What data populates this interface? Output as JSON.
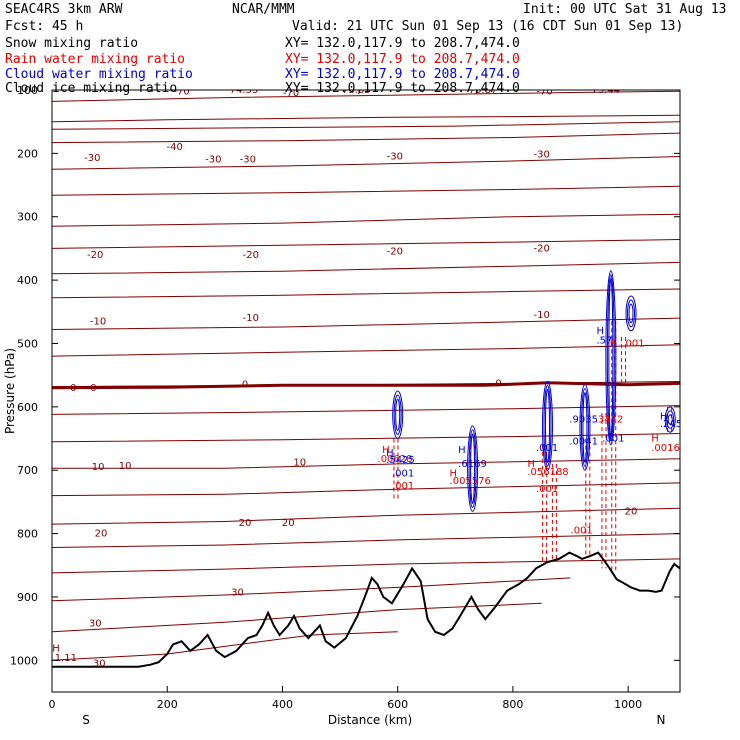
{
  "header": {
    "model": "SEAC4RS  3km ARW",
    "org": "NCAR/MMM",
    "init": "Init: 00 UTC Sat 31 Aug 13",
    "fcst": "Fcst:   45 h",
    "valid": "Valid: 21 UTC Sun 01 Sep 13 (16 CDT Sun 01 Sep 13)",
    "fields": [
      {
        "name": "Snow mixing ratio",
        "xy": "XY= 132.0,117.9 to 208.7,474.0",
        "color": "#000000"
      },
      {
        "name": "Rain water mixing ratio",
        "xy": "XY= 132.0,117.9 to 208.7,474.0",
        "color": "#e00000"
      },
      {
        "name": "Cloud water mixing ratio",
        "xy": "XY= 132.0,117.9 to 208.7,474.0",
        "color": "#0000d0"
      },
      {
        "name": "Cloud ice mixing ratio",
        "xy": "XY= 132.0,117.9 to 208.7,474.0",
        "color": "#000000"
      }
    ]
  },
  "chart_data": {
    "type": "cross-section",
    "xlabel": "Distance (km)",
    "ylabel": "Pressure (hPa)",
    "xlim": [
      0,
      1090
    ],
    "ylim_hpa": [
      1050,
      100
    ],
    "x_ticks": [
      0,
      200,
      400,
      600,
      800,
      1000
    ],
    "y_ticks": [
      100,
      200,
      300,
      400,
      500,
      600,
      700,
      800,
      900,
      1000
    ],
    "x_end_labels": [
      "S",
      "N"
    ],
    "colors": {
      "temperature": "#800000",
      "freezing_level": "#800000",
      "terrain": "#000000",
      "rain": "#e00000",
      "cloud_water": "#0000d0"
    },
    "temperature_contours_C": [
      {
        "value": -70,
        "points": [
          [
            0,
            150
          ],
          [
            200,
            147
          ],
          [
            400,
            145
          ],
          [
            600,
            143
          ],
          [
            800,
            142
          ],
          [
            1090,
            140
          ]
        ]
      },
      {
        "value": -70,
        "points": [
          [
            0,
            118
          ],
          [
            300,
            112
          ],
          [
            600,
            108
          ],
          [
            900,
            104
          ],
          [
            1090,
            102
          ]
        ]
      },
      {
        "value": -60,
        "points": [
          [
            0,
            162
          ],
          [
            300,
            160
          ],
          [
            700,
            157
          ],
          [
            1090,
            150
          ]
        ]
      },
      {
        "value": -50,
        "points": [
          [
            0,
            183
          ],
          [
            400,
            180
          ],
          [
            800,
            175
          ],
          [
            1090,
            168
          ]
        ]
      },
      {
        "value": -40,
        "points": [
          [
            0,
            225
          ],
          [
            400,
            220
          ],
          [
            800,
            212
          ],
          [
            1090,
            205
          ]
        ]
      },
      {
        "value": -30,
        "points": [
          [
            0,
            266
          ],
          [
            400,
            262
          ],
          [
            800,
            257
          ],
          [
            1090,
            252
          ]
        ]
      },
      {
        "value": -30,
        "points": [
          [
            0,
            315
          ],
          [
            400,
            310
          ],
          [
            800,
            300
          ],
          [
            1090,
            296
          ]
        ]
      },
      {
        "value": -20,
        "points": [
          [
            0,
            350
          ],
          [
            400,
            345
          ],
          [
            800,
            340
          ],
          [
            1090,
            336
          ]
        ]
      },
      {
        "value": -20,
        "points": [
          [
            0,
            390
          ],
          [
            400,
            386
          ],
          [
            800,
            378
          ],
          [
            1090,
            372
          ]
        ]
      },
      {
        "value": -10,
        "points": [
          [
            0,
            428
          ],
          [
            400,
            424
          ],
          [
            800,
            418
          ],
          [
            1090,
            414
          ]
        ]
      },
      {
        "value": -10,
        "points": [
          [
            0,
            478
          ],
          [
            400,
            474
          ],
          [
            800,
            466
          ],
          [
            1090,
            460
          ]
        ]
      },
      {
        "value": -10,
        "points": [
          [
            0,
            520
          ],
          [
            400,
            514
          ],
          [
            800,
            508
          ],
          [
            1090,
            502
          ]
        ]
      },
      {
        "value": 0,
        "points": [
          [
            0,
            568
          ],
          [
            400,
            566
          ],
          [
            800,
            563
          ],
          [
            1090,
            560
          ]
        ]
      },
      {
        "value": 0,
        "points": [
          [
            0,
            612
          ],
          [
            400,
            608
          ],
          [
            800,
            603
          ],
          [
            1090,
            598
          ]
        ]
      },
      {
        "value": 10,
        "points": [
          [
            0,
            655
          ],
          [
            400,
            652
          ],
          [
            800,
            647
          ],
          [
            1090,
            642
          ]
        ]
      },
      {
        "value": 10,
        "points": [
          [
            0,
            697
          ],
          [
            300,
            697
          ],
          [
            600,
            690
          ],
          [
            1090,
            682
          ]
        ]
      },
      {
        "value": 10,
        "points": [
          [
            0,
            740
          ],
          [
            300,
            738
          ],
          [
            600,
            730
          ],
          [
            1090,
            720
          ]
        ]
      },
      {
        "value": 20,
        "points": [
          [
            0,
            785
          ],
          [
            300,
            781
          ],
          [
            600,
            771
          ],
          [
            1090,
            760
          ]
        ]
      },
      {
        "value": 20,
        "points": [
          [
            0,
            822
          ],
          [
            300,
            818
          ],
          [
            600,
            810
          ],
          [
            1090,
            800
          ]
        ]
      },
      {
        "value": 20,
        "points": [
          [
            0,
            862
          ],
          [
            300,
            856
          ],
          [
            600,
            848
          ],
          [
            1090,
            840
          ]
        ]
      },
      {
        "value": 30,
        "points": [
          [
            0,
            906
          ],
          [
            300,
            897
          ],
          [
            600,
            885
          ],
          [
            900,
            870
          ]
        ]
      },
      {
        "value": 30,
        "points": [
          [
            0,
            955
          ],
          [
            300,
            940
          ],
          [
            600,
            920
          ],
          [
            850,
            910
          ]
        ]
      },
      {
        "value": 30,
        "points": [
          [
            0,
            1000
          ],
          [
            200,
            990
          ],
          [
            450,
            960
          ],
          [
            600,
            955
          ]
        ]
      }
    ],
    "freezing_level": {
      "value": 0,
      "points": [
        [
          0,
          570
        ],
        [
          200,
          569
        ],
        [
          400,
          566
        ],
        [
          600,
          566
        ],
        [
          750,
          566
        ],
        [
          860,
          562
        ],
        [
          1000,
          565
        ],
        [
          1090,
          563
        ]
      ]
    },
    "contour_labels": [
      {
        "text": "-70",
        "x": 225,
        "p": 102
      },
      {
        "text": "-70",
        "x": 415,
        "p": 105
      },
      {
        "text": "-70",
        "x": 855,
        "p": 102
      },
      {
        "text": "-40",
        "x": 213,
        "p": 190
      },
      {
        "text": "-30",
        "x": 70,
        "p": 207
      },
      {
        "text": "-30",
        "x": 280,
        "p": 210
      },
      {
        "text": "-30",
        "x": 340,
        "p": 210
      },
      {
        "text": "-30",
        "x": 595,
        "p": 205
      },
      {
        "text": "-30",
        "x": 850,
        "p": 202
      },
      {
        "text": "-20",
        "x": 75,
        "p": 360
      },
      {
        "text": "-20",
        "x": 345,
        "p": 360
      },
      {
        "text": "-20",
        "x": 595,
        "p": 355
      },
      {
        "text": "-20",
        "x": 850,
        "p": 350
      },
      {
        "text": "-10",
        "x": 80,
        "p": 465
      },
      {
        "text": "-10",
        "x": 345,
        "p": 460
      },
      {
        "text": "-10",
        "x": 850,
        "p": 455
      },
      {
        "text": "0",
        "x": 37,
        "p": 570
      },
      {
        "text": "0",
        "x": 72,
        "p": 570
      },
      {
        "text": "0",
        "x": 335,
        "p": 565
      },
      {
        "text": "0",
        "x": 775,
        "p": 563
      },
      {
        "text": "10",
        "x": 80,
        "p": 695
      },
      {
        "text": "10",
        "x": 127,
        "p": 693
      },
      {
        "text": "10",
        "x": 430,
        "p": 688
      },
      {
        "text": "20",
        "x": 335,
        "p": 783
      },
      {
        "text": "20",
        "x": 410,
        "p": 783
      },
      {
        "text": "20",
        "x": 85,
        "p": 800
      },
      {
        "text": "20",
        "x": 1005,
        "p": 765
      },
      {
        "text": "30",
        "x": 322,
        "p": 893
      },
      {
        "text": "30",
        "x": 75,
        "p": 942
      },
      {
        "text": "30",
        "x": 82,
        "p": 1005
      }
    ],
    "extrema_labels": [
      {
        "text": "-74.33",
        "x": 330,
        "p": 100,
        "color": "#800000"
      },
      {
        "text": "-73.85",
        "x": 525,
        "p": 100,
        "color": "#800000"
      },
      {
        "text": "-73.87",
        "x": 745,
        "p": 100,
        "color": "#800000"
      },
      {
        "text": "-73.44",
        "x": 958,
        "p": 100,
        "color": "#800000"
      },
      {
        "text": "1.11",
        "x": 24,
        "p": 996,
        "color": "#800000"
      },
      {
        "text": "H",
        "x": 7,
        "p": 981,
        "color": "#800000"
      }
    ],
    "terrain": {
      "points": [
        [
          0,
          1010
        ],
        [
          150,
          1010
        ],
        [
          170,
          1007
        ],
        [
          185,
          1003
        ],
        [
          200,
          990
        ],
        [
          210,
          975
        ],
        [
          225,
          970
        ],
        [
          240,
          985
        ],
        [
          255,
          975
        ],
        [
          270,
          960
        ],
        [
          285,
          985
        ],
        [
          300,
          995
        ],
        [
          320,
          985
        ],
        [
          340,
          965
        ],
        [
          355,
          960
        ],
        [
          365,
          945
        ],
        [
          375,
          925
        ],
        [
          385,
          945
        ],
        [
          395,
          960
        ],
        [
          410,
          945
        ],
        [
          420,
          930
        ],
        [
          430,
          950
        ],
        [
          445,
          965
        ],
        [
          455,
          955
        ],
        [
          465,
          945
        ],
        [
          475,
          970
        ],
        [
          490,
          980
        ],
        [
          510,
          965
        ],
        [
          530,
          930
        ],
        [
          545,
          895
        ],
        [
          555,
          870
        ],
        [
          565,
          880
        ],
        [
          575,
          900
        ],
        [
          590,
          910
        ],
        [
          600,
          895
        ],
        [
          610,
          880
        ],
        [
          625,
          855
        ],
        [
          640,
          875
        ],
        [
          652,
          935
        ],
        [
          665,
          955
        ],
        [
          680,
          960
        ],
        [
          695,
          950
        ],
        [
          705,
          935
        ],
        [
          715,
          920
        ],
        [
          728,
          900
        ],
        [
          740,
          920
        ],
        [
          752,
          935
        ],
        [
          770,
          915
        ],
        [
          790,
          890
        ],
        [
          810,
          880
        ],
        [
          825,
          870
        ],
        [
          840,
          855
        ],
        [
          860,
          845
        ],
        [
          880,
          840
        ],
        [
          898,
          830
        ],
        [
          910,
          835
        ],
        [
          920,
          840
        ],
        [
          935,
          835
        ],
        [
          948,
          830
        ],
        [
          958,
          842
        ],
        [
          968,
          855
        ],
        [
          980,
          872
        ],
        [
          992,
          878
        ],
        [
          1005,
          885
        ],
        [
          1020,
          890
        ],
        [
          1035,
          890
        ],
        [
          1048,
          892
        ],
        [
          1058,
          890
        ],
        [
          1065,
          875
        ],
        [
          1072,
          860
        ],
        [
          1080,
          848
        ],
        [
          1090,
          855
        ]
      ]
    },
    "cloud_water_cells": [
      {
        "x": 600,
        "p_top": 575,
        "p_bottom": 650
      },
      {
        "x": 730,
        "p_top": 630,
        "p_bottom": 765
      },
      {
        "x": 860,
        "p_top": 560,
        "p_bottom": 700
      },
      {
        "x": 925,
        "p_top": 565,
        "p_bottom": 700
      },
      {
        "x": 970,
        "p_top": 385,
        "p_bottom": 660
      },
      {
        "x": 1005,
        "p_top": 425,
        "p_bottom": 480
      },
      {
        "x": 1073,
        "p_top": 600,
        "p_bottom": 640
      }
    ],
    "rain_cells": [
      {
        "x": 597,
        "p_top": 650,
        "p_bottom": 745
      },
      {
        "x": 730,
        "p_top": 660,
        "p_bottom": 745
      },
      {
        "x": 855,
        "p_top": 660,
        "p_bottom": 845
      },
      {
        "x": 872,
        "p_top": 690,
        "p_bottom": 845
      },
      {
        "x": 930,
        "p_top": 650,
        "p_bottom": 835
      },
      {
        "x": 958,
        "p_top": 610,
        "p_bottom": 855
      },
      {
        "x": 975,
        "p_top": 465,
        "p_bottom": 860
      },
      {
        "x": 992,
        "p_top": 490,
        "p_bottom": 565
      },
      {
        "x": 1072,
        "p_top": 600,
        "p_bottom": 640
      }
    ],
    "cell_labels": [
      {
        "text": "H",
        "x": 573,
        "p": 668,
        "color": "#e00000"
      },
      {
        "text": ".00628",
        "x": 565,
        "p": 682,
        "color": "#e00000"
      },
      {
        "text": "H",
        "x": 580,
        "p": 673,
        "color": "#0000d0"
      },
      {
        "text": ".5425",
        "x": 580,
        "p": 684,
        "color": "#0000d0"
      },
      {
        "text": ".001",
        "x": 590,
        "p": 705,
        "color": "#0000d0"
      },
      {
        "text": ".001",
        "x": 590,
        "p": 725,
        "color": "#e00000"
      },
      {
        "text": "H",
        "x": 705,
        "p": 668,
        "color": "#0000d0"
      },
      {
        "text": ".6169",
        "x": 705,
        "p": 690,
        "color": "#0000d0"
      },
      {
        "text": "H",
        "x": 690,
        "p": 705,
        "color": "#e00000"
      },
      {
        "text": ".005576",
        "x": 690,
        "p": 717,
        "color": "#e00000"
      },
      {
        "text": "H",
        "x": 825,
        "p": 690,
        "color": "#e00000"
      },
      {
        "text": ".056188",
        "x": 825,
        "p": 703,
        "color": "#e00000"
      },
      {
        "text": ".001",
        "x": 840,
        "p": 665,
        "color": "#0000d0"
      },
      {
        "text": ".001",
        "x": 840,
        "p": 730,
        "color": "#e00000"
      },
      {
        "text": ".9035",
        "x": 898,
        "p": 620,
        "color": "#0000d0"
      },
      {
        "text": ".3472",
        "x": 942,
        "p": 620,
        "color": "#e00000"
      },
      {
        "text": ".0041",
        "x": 898,
        "p": 655,
        "color": "#0000d0"
      },
      {
        "text": ".001",
        "x": 955,
        "p": 650,
        "color": "#0000d0"
      },
      {
        "text": "H",
        "x": 945,
        "p": 480,
        "color": "#0000d0"
      },
      {
        "text": ".57",
        "x": 945,
        "p": 495,
        "color": "#0000d0"
      },
      {
        "text": "B",
        "x": 968,
        "p": 500,
        "color": "#e00000"
      },
      {
        "text": ".001",
        "x": 990,
        "p": 500,
        "color": "#e00000"
      },
      {
        "text": "H",
        "x": 1040,
        "p": 650,
        "color": "#e00000"
      },
      {
        "text": ".00168",
        "x": 1040,
        "p": 665,
        "color": "#e00000"
      },
      {
        "text": "H",
        "x": 1055,
        "p": 615,
        "color": "#0000d0"
      },
      {
        "text": ".2456",
        "x": 1055,
        "p": 627,
        "color": "#0000d0"
      },
      {
        "text": ".001",
        "x": 900,
        "p": 795,
        "color": "#e00000"
      }
    ]
  }
}
